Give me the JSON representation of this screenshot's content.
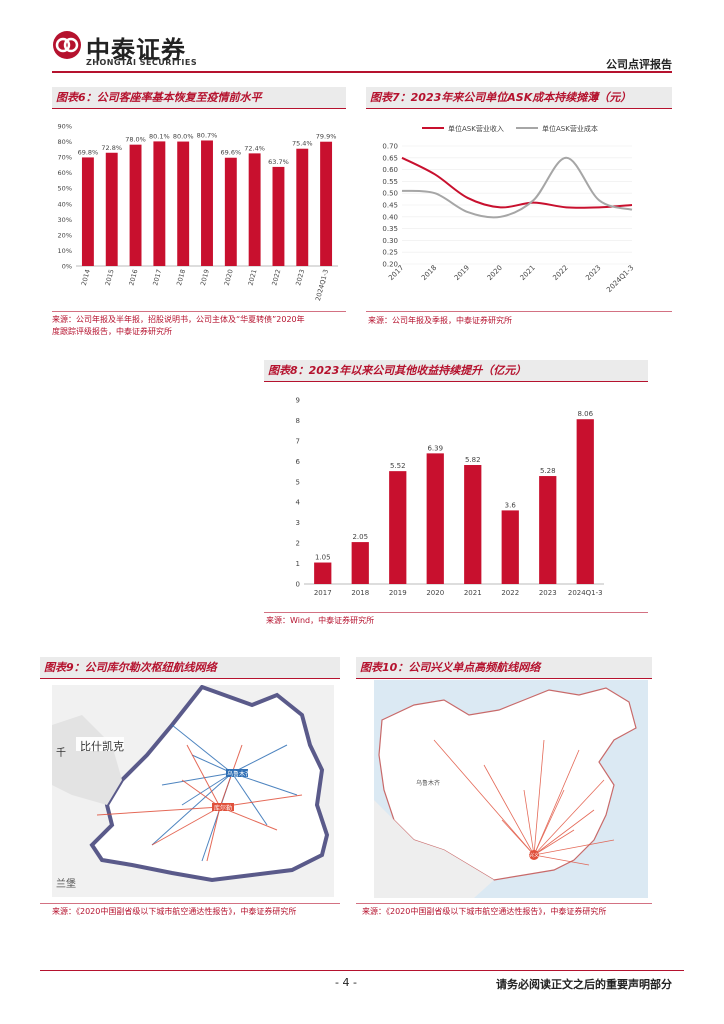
{
  "header": {
    "brand_cn": "中泰证券",
    "brand_en": "ZHONGTAI SECURITIES",
    "report_type": "公司点评报告"
  },
  "fig6": {
    "title": "图表6：公司客座率基本恢复至疫情前水平",
    "source_line1": "来源：公司年报及半年报，招股说明书，公司主体及“华夏转债”2020年",
    "source_line2": "度跟踪评级报告，中泰证券研究所"
  },
  "fig7": {
    "title": "图表7：2023年来公司单位ASK成本持续摊薄（元）",
    "source": "来源：公司年报及季报，中泰证券研究所"
  },
  "fig8": {
    "title": "图表8：2023年以来公司其他收益持续提升（亿元）",
    "source": "来源：Wind，中泰证券研究所"
  },
  "fig9": {
    "title": "图表9：公司库尔勒次枢纽航线网络",
    "source": "来源：《2020中国副省级以下城市航空通达性报告》，中泰证券研究所",
    "map_labels": [
      "比什凯克",
      "千",
      "兰堡",
      "乌鲁木齐",
      "库尔勒"
    ]
  },
  "fig10": {
    "title": "图表10：公司兴义单点高频航线网络",
    "source": "来源：《2020中国副省级以下城市航空通达性报告》，中泰证券研究所",
    "map_labels": [
      "乌鲁木齐",
      "兴义"
    ]
  },
  "footer": {
    "page": "- 4 -",
    "disclaimer": "请务必阅读正文之后的重要声明部分"
  },
  "chart_data": [
    {
      "id": "fig6",
      "type": "bar",
      "categories": [
        "2014",
        "2015",
        "2016",
        "2017",
        "2018",
        "2019",
        "2020",
        "2021",
        "2022",
        "2023",
        "2024Q1-3"
      ],
      "values": [
        69.8,
        72.8,
        78.0,
        80.1,
        80.0,
        80.7,
        69.6,
        72.4,
        63.7,
        75.4,
        79.9
      ],
      "data_labels": [
        "69.8%",
        "72.8%",
        "78.0%",
        "80.1%",
        "80.0%",
        "80.7%",
        "69.6%",
        "72.4%",
        "63.7%",
        "75.4%",
        "79.9%"
      ],
      "yticks": [
        "0%",
        "10%",
        "20%",
        "30%",
        "40%",
        "50%",
        "60%",
        "70%",
        "80%",
        "90%"
      ],
      "ylim": [
        0,
        90
      ],
      "color": "#c8102e"
    },
    {
      "id": "fig7",
      "type": "line",
      "categories": [
        "2017",
        "2018",
        "2019",
        "2020",
        "2021",
        "2022",
        "2023",
        "2024Q1-3"
      ],
      "series": [
        {
          "name": "单位ASK营业收入",
          "values": [
            0.65,
            0.58,
            0.48,
            0.44,
            0.46,
            0.44,
            0.44,
            0.45
          ],
          "color": "#c8102e"
        },
        {
          "name": "单位ASK营业成本",
          "values": [
            0.51,
            0.5,
            0.42,
            0.4,
            0.47,
            0.65,
            0.47,
            0.43
          ],
          "color": "#a6a6a6"
        }
      ],
      "yticks": [
        "0.20",
        "0.25",
        "0.30",
        "0.35",
        "0.40",
        "0.45",
        "0.50",
        "0.55",
        "0.60",
        "0.65",
        "0.70"
      ],
      "ylim": [
        0.2,
        0.7
      ],
      "legend": "top"
    },
    {
      "id": "fig8",
      "type": "bar",
      "categories": [
        "2017",
        "2018",
        "2019",
        "2020",
        "2021",
        "2022",
        "2023",
        "2024Q1-3"
      ],
      "values": [
        1.05,
        2.05,
        5.52,
        6.39,
        5.82,
        3.6,
        5.28,
        8.06
      ],
      "data_labels": [
        "1.05",
        "2.05",
        "5.52",
        "6.39",
        "5.82",
        "3.6",
        "5.28",
        "8.06"
      ],
      "yticks": [
        "0",
        "1",
        "2",
        "3",
        "4",
        "5",
        "6",
        "7",
        "8",
        "9"
      ],
      "ylim": [
        0,
        9
      ],
      "color": "#c8102e"
    }
  ]
}
